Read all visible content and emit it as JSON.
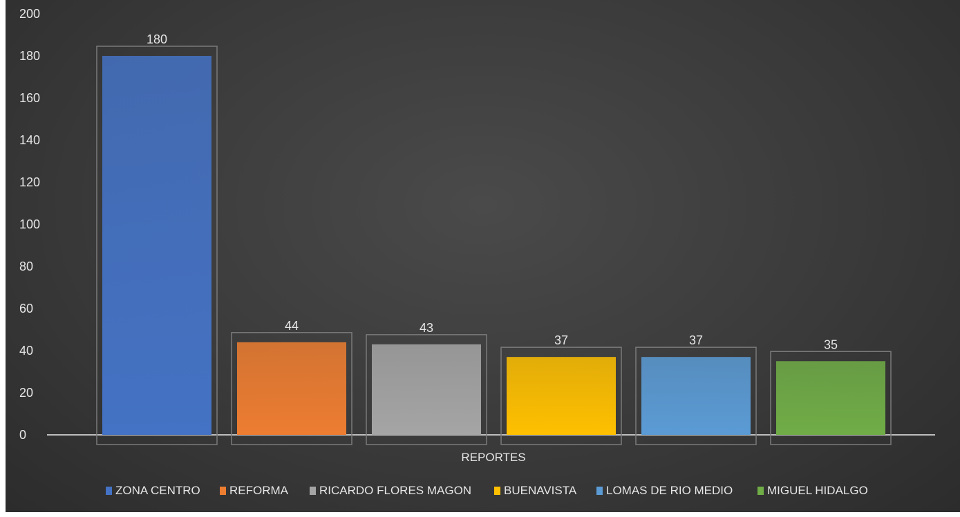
{
  "chart_data": {
    "type": "bar",
    "categories": [
      "REPORTES"
    ],
    "ylim": [
      0,
      200
    ],
    "yticks": [
      0,
      20,
      40,
      60,
      80,
      100,
      120,
      140,
      160,
      180,
      200
    ],
    "grid": false,
    "legend_position": "bottom",
    "series": [
      {
        "name": "ZONA CENTRO",
        "values": [
          180
        ],
        "color": "#4472c4"
      },
      {
        "name": "REFORMA",
        "values": [
          44
        ],
        "color": "#ed7d31"
      },
      {
        "name": "RICARDO FLORES MAGON",
        "values": [
          43
        ],
        "color": "#a5a5a5"
      },
      {
        "name": "BUENAVISTA",
        "values": [
          37
        ],
        "color": "#ffc000"
      },
      {
        "name": "LOMAS DE RIO MEDIO",
        "values": [
          37
        ],
        "color": "#5b9bd5"
      },
      {
        "name": "MIGUEL HIDALGO",
        "values": [
          35
        ],
        "color": "#70ad47"
      }
    ],
    "data_labels": [
      "180",
      "44",
      "43",
      "37",
      "37",
      "35"
    ]
  }
}
